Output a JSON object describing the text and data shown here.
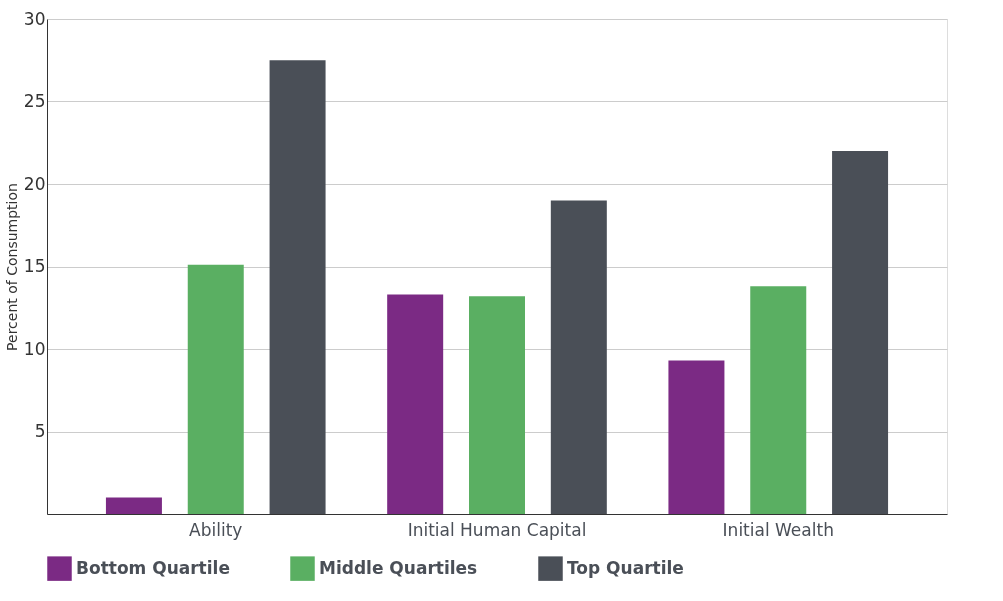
{
  "chart_data": {
    "type": "bar",
    "ylabel": "Percent of Consumption",
    "categories": [
      "Ability",
      "Initial Human Capital",
      "Initial Wealth"
    ],
    "series": [
      {
        "name": "Bottom Quartile",
        "color": "#7b2a84",
        "values": [
          1.0,
          13.3,
          9.3
        ]
      },
      {
        "name": "Middle Quartiles",
        "color": "#5aaf62",
        "values": [
          15.1,
          13.2,
          13.8
        ]
      },
      {
        "name": "Top Quartile",
        "color": "#4a4f57",
        "values": [
          27.5,
          19.0,
          22.0
        ]
      }
    ],
    "ylim": [
      0,
      30
    ],
    "yticks": [
      5,
      10,
      15,
      20,
      25,
      30
    ],
    "grid": "y",
    "legend": "bottom"
  }
}
